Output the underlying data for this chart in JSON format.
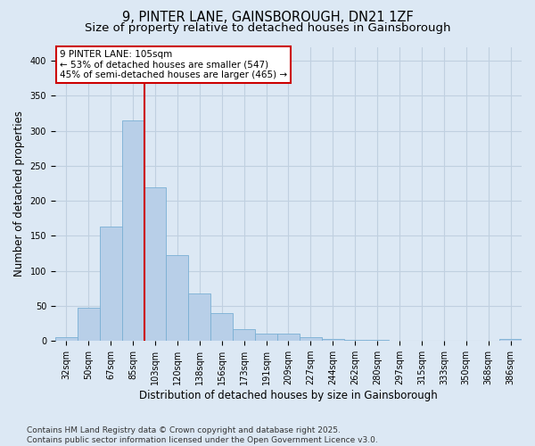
{
  "title_line1": "9, PINTER LANE, GAINSBOROUGH, DN21 1ZF",
  "title_line2": "Size of property relative to detached houses in Gainsborough",
  "xlabel": "Distribution of detached houses by size in Gainsborough",
  "ylabel": "Number of detached properties",
  "categories": [
    "32sqm",
    "50sqm",
    "67sqm",
    "85sqm",
    "103sqm",
    "120sqm",
    "138sqm",
    "156sqm",
    "173sqm",
    "191sqm",
    "209sqm",
    "227sqm",
    "244sqm",
    "262sqm",
    "280sqm",
    "297sqm",
    "315sqm",
    "333sqm",
    "350sqm",
    "368sqm",
    "386sqm"
  ],
  "values": [
    5,
    48,
    163,
    315,
    220,
    122,
    68,
    40,
    17,
    10,
    10,
    6,
    3,
    1,
    1,
    0,
    0,
    0,
    0,
    0,
    3
  ],
  "bar_color": "#b8cfe8",
  "bar_edge_color": "#7aafd4",
  "vline_x_index": 3.5,
  "annotation_line1": "9 PINTER LANE: 105sqm",
  "annotation_line2": "← 53% of detached houses are smaller (547)",
  "annotation_line3": "45% of semi-detached houses are larger (465) →",
  "annotation_box_facecolor": "#ffffff",
  "annotation_box_edgecolor": "#cc0000",
  "vline_color": "#cc0000",
  "grid_color": "#c0d0e0",
  "bg_color": "#dce8f4",
  "plot_bg_color": "#dce8f4",
  "ylim": [
    0,
    420
  ],
  "yticks": [
    0,
    50,
    100,
    150,
    200,
    250,
    300,
    350,
    400
  ],
  "footnote_line1": "Contains HM Land Registry data © Crown copyright and database right 2025.",
  "footnote_line2": "Contains public sector information licensed under the Open Government Licence v3.0.",
  "title_fontsize": 10.5,
  "subtitle_fontsize": 9.5,
  "axis_label_fontsize": 8.5,
  "tick_fontsize": 7,
  "annotation_fontsize": 7.5,
  "footnote_fontsize": 6.5
}
